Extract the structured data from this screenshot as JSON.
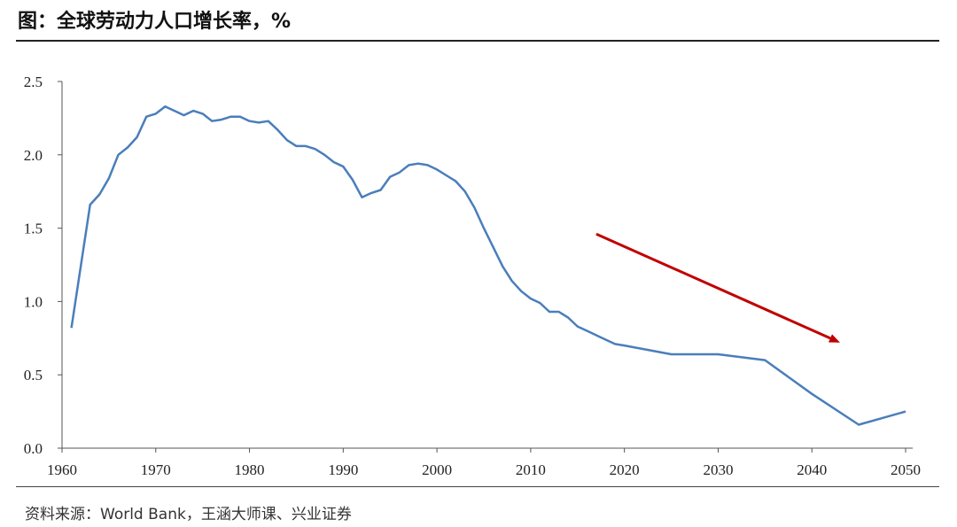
{
  "title": "图：全球劳动力人口增长率，%",
  "source": "资料来源：World Bank，王涵大师课、兴业证券",
  "chart_data": {
    "type": "line",
    "xlim": [
      1960,
      2050
    ],
    "ylim": [
      0.0,
      2.5
    ],
    "x_ticks": [
      "1960",
      "1970",
      "1980",
      "1990",
      "2000",
      "2010",
      "2020",
      "2030",
      "2040",
      "2050"
    ],
    "y_ticks": [
      "0.0",
      "0.5",
      "1.0",
      "1.5",
      "2.0",
      "2.5"
    ],
    "grid": false,
    "legend": "none",
    "line_color": "#4a7ebb",
    "arrow_color": "#c00000",
    "arrow": {
      "from": [
        2017,
        1.46
      ],
      "to": [
        2043,
        0.72
      ]
    },
    "series": [
      {
        "x": [
          1961,
          1963,
          1964,
          1965,
          1966,
          1967,
          1968,
          1969,
          1970,
          1971,
          1972,
          1973,
          1974,
          1975,
          1976,
          1977,
          1978,
          1979,
          1980,
          1981,
          1982,
          1983,
          1984,
          1985,
          1986,
          1987,
          1988,
          1989,
          1990,
          1991,
          1992,
          1993,
          1994,
          1995,
          1996,
          1997,
          1998,
          1999,
          2000,
          2001,
          2002,
          2003,
          2004,
          2005,
          2006,
          2007,
          2008,
          2009,
          2010,
          2011,
          2012,
          2013,
          2014,
          2015,
          2016,
          2017,
          2018,
          2019,
          2020,
          2025,
          2030,
          2035,
          2040,
          2045,
          2050
        ],
        "y": [
          0.82,
          1.66,
          1.73,
          1.84,
          2.0,
          2.05,
          2.12,
          2.26,
          2.28,
          2.33,
          2.3,
          2.27,
          2.3,
          2.28,
          2.23,
          2.24,
          2.26,
          2.26,
          2.23,
          2.22,
          2.23,
          2.17,
          2.1,
          2.06,
          2.06,
          2.04,
          2.0,
          1.95,
          1.92,
          1.83,
          1.71,
          1.74,
          1.76,
          1.85,
          1.88,
          1.93,
          1.94,
          1.93,
          1.9,
          1.86,
          1.82,
          1.75,
          1.64,
          1.5,
          1.37,
          1.24,
          1.14,
          1.07,
          1.02,
          0.99,
          0.93,
          0.93,
          0.89,
          0.83,
          0.8,
          0.77,
          0.74,
          0.71,
          0.7,
          0.64,
          0.64,
          0.6,
          0.37,
          0.16,
          0.25
        ]
      }
    ]
  }
}
